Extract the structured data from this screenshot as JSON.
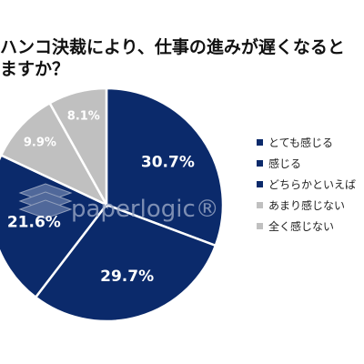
{
  "title": {
    "line1": "ハンコ決裁により、仕事の進みが遅くなると",
    "line2": "ますか？"
  },
  "colors": {
    "dark": "#0b2a6b",
    "light": "#c0c0c0",
    "label_on_dark": "#ffffff",
    "label_on_light": "#ffffff"
  },
  "watermark": {
    "text": "paperlogic®",
    "icon": "layers-logo-icon"
  },
  "chart_data": {
    "type": "pie",
    "categories": [
      "とても感じる",
      "感じる",
      "どちらかといえば",
      "あまり感じない",
      "全く感じない"
    ],
    "values": [
      30.7,
      29.7,
      21.6,
      9.9,
      8.1
    ],
    "value_labels": [
      "30.7%",
      "29.7%",
      "21.6%",
      "9.9%",
      "8.1%"
    ],
    "slice_colors": [
      "#0b2a6b",
      "#0b2a6b",
      "#0b2a6b",
      "#c0c0c0",
      "#c0c0c0"
    ],
    "start_angle_deg": 0,
    "direction": "clockwise",
    "legend_position": "right"
  }
}
